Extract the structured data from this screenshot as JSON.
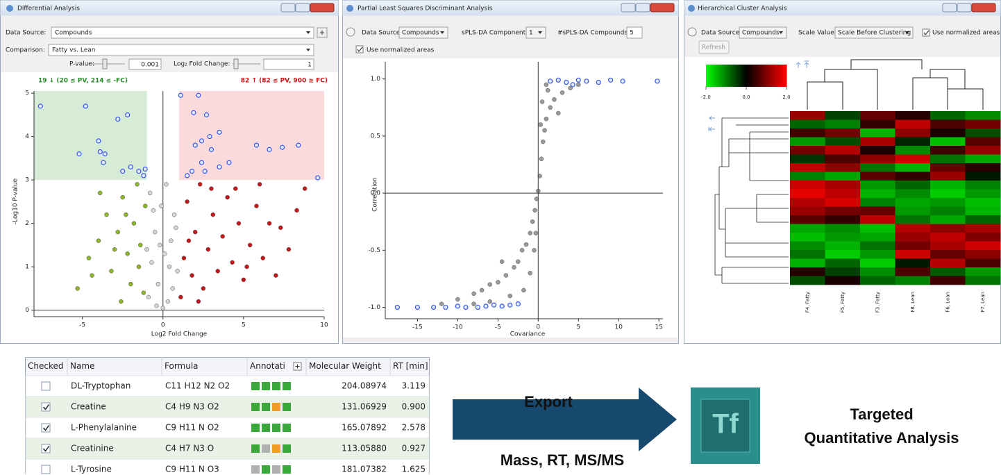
{
  "windows": [
    {
      "title": "Differential Analysis",
      "controls": {
        "data_source_label": "Data Source:",
        "data_source": "Compounds",
        "comparison_label": "Comparison:",
        "comparison": "Fatty vs. Lean",
        "pvalue_label": "P-value:",
        "pvalue": "0.001",
        "fold_label": "Log₂ Fold Change:",
        "fold": "1"
      },
      "chart": {
        "type": "scatter",
        "down_label": "19 ↓ (20 ≤ PV, 214 ≤ -FC)",
        "up_label": "82 ↑ (82 ≤ PV, 900 ≥ FC)",
        "xlabel": "Log2 Fold Change",
        "ylabel": "-Log10 P-value",
        "xlim": [
          -8,
          10
        ],
        "ylim": [
          -0.15,
          5.05
        ],
        "xticks": [
          -5,
          0,
          5,
          10
        ],
        "yticks": [
          0,
          1,
          2,
          3,
          4,
          5
        ],
        "thresholds": {
          "y": 3,
          "x": 1,
          "down_color": "#d6ecd6",
          "up_color": "#fadada"
        },
        "series": [
          {
            "color": "#d4d4d4",
            "x": [
              -0.9,
              -0.7,
              -0.5,
              -0.3,
              -0.1,
              0.1,
              0.3,
              0.5,
              0.7,
              0.9,
              -0.8,
              -0.4,
              0.2,
              0.6,
              -0.2,
              0.8,
              -0.6,
              0.4,
              0,
              -1
            ],
            "values": [
              0.3,
              1.1,
              1.8,
              0.6,
              2.4,
              1.3,
              0.2,
              1.6,
              2.2,
              0.9,
              2.7,
              0.1,
              2.9,
              0.5,
              1.5,
              1.9,
              2.3,
              1.0,
              0.05,
              1.4
            ]
          },
          {
            "color": "#8db52a",
            "x": [
              -5.3,
              -4.6,
              -4.0,
              -3.5,
              -3.2,
              -2.8,
              -2.5,
              -2.2,
              -2.0,
              -1.8,
              -1.6,
              -1.4,
              -1.2,
              -1.1,
              -3.9,
              -4.4,
              -2.6,
              -1.5,
              -3.0,
              -2.3
            ],
            "values": [
              0.5,
              1.2,
              1.6,
              2.2,
              0.9,
              1.8,
              2.6,
              1.3,
              0.6,
              2.0,
              2.9,
              1.5,
              0.4,
              2.4,
              2.7,
              0.8,
              0.2,
              1.0,
              1.4,
              2.2
            ]
          },
          {
            "color": "#c0181b",
            "x": [
              1.1,
              1.3,
              1.5,
              1.8,
              2.0,
              2.3,
              2.5,
              2.8,
              3.1,
              3.4,
              3.7,
              4.0,
              4.3,
              4.7,
              5.0,
              5.4,
              5.8,
              6.2,
              6.6,
              7.0,
              7.3,
              7.8,
              8.3,
              8.8,
              3.0,
              1.6,
              2.2,
              4.5,
              6.0,
              5.2
            ],
            "values": [
              0.3,
              1.2,
              2.5,
              0.8,
              1.8,
              2.9,
              0.5,
              1.4,
              2.2,
              0.9,
              1.7,
              2.6,
              1.1,
              2.0,
              0.7,
              1.5,
              2.4,
              1.2,
              2.0,
              0.8,
              1.9,
              1.4,
              2.3,
              2.8,
              2.8,
              1.6,
              0.2,
              2.8,
              2.9,
              1.0
            ]
          },
          {
            "color": "#3355ee",
            "x": [
              -7.6,
              -4.8,
              -2.2,
              -2.8,
              -5.2,
              -4.0,
              -3.9,
              -3.6,
              -3.7,
              -2.5,
              -2.0,
              -1.5,
              -1.2,
              -1.1,
              1.1,
              2.2,
              1.9,
              2.7,
              3.5,
              2.0,
              2.4,
              3.0,
              2.9,
              1.8,
              2.4,
              3.5,
              4.1,
              5.8,
              6.6,
              7.4,
              8.4,
              9.6,
              1.5,
              2.6
            ],
            "values": [
              4.7,
              4.7,
              4.5,
              4.4,
              3.6,
              3.9,
              3.65,
              3.6,
              3.4,
              3.2,
              3.3,
              3.2,
              3.1,
              3.25,
              4.95,
              4.95,
              4.55,
              4.5,
              4.1,
              3.8,
              3.9,
              3.7,
              4.0,
              3.2,
              3.4,
              3.3,
              3.4,
              3.8,
              3.7,
              3.75,
              3.8,
              3.05,
              3.1,
              3.2
            ]
          }
        ]
      }
    },
    {
      "title": "Partial Least Squares Discriminant Analysis",
      "controls": {
        "data_source_label": "Data Source:",
        "data_source": "Compounds",
        "component_label": "sPLS-DA Component:",
        "component": "1",
        "compounds_label": "#sPLS-DA Compounds:",
        "compounds": "5",
        "normalized": "Use normalized areas"
      },
      "chart": {
        "type": "scatter",
        "xlabel": "Covariance",
        "ylabel": "Correlation",
        "xlim": [
          -19,
          15.5
        ],
        "ylim": [
          -1.1,
          1.15
        ],
        "xticks": [
          -15,
          -10,
          -5,
          0,
          5,
          10,
          15
        ],
        "yticks": [
          {
            "value": -1,
            "label": "-1.0"
          },
          -0.5,
          {
            "value": 0,
            "label": "0.0"
          },
          0.5,
          {
            "value": 1,
            "label": "1.0"
          }
        ],
        "series": [
          {
            "color": "#555555",
            "x": [
              -12,
              -10,
              -8,
              -7,
              -6,
              -5,
              -4,
              -3,
              -2.5,
              -2,
              -1.5,
              -1,
              -0.7,
              -0.4,
              -0.2,
              0,
              0.2,
              0.4,
              0.6,
              0.8,
              1,
              1.5,
              2,
              3,
              4,
              5,
              -3.5,
              -1,
              -0.5,
              0.5,
              1.2,
              2.5,
              -6,
              -8,
              -1.8,
              0.3,
              -0.3,
              1,
              3.5,
              -4.5
            ],
            "values": [
              -0.97,
              -0.93,
              -0.88,
              -0.85,
              -0.8,
              -0.78,
              -0.72,
              -0.65,
              -0.6,
              -0.5,
              -0.45,
              -0.35,
              -0.25,
              -0.15,
              -0.05,
              0.02,
              0.15,
              0.3,
              0.45,
              0.55,
              0.65,
              0.75,
              0.82,
              0.88,
              0.92,
              0.95,
              -0.9,
              -0.7,
              -0.5,
              0.8,
              0.9,
              0.7,
              -0.95,
              -0.97,
              -0.85,
              0.6,
              -0.35,
              0.95,
              0.97,
              -0.6
            ]
          },
          {
            "color": "#3355ee",
            "x": [
              -17.5,
              -15,
              -13,
              -11.5,
              -10,
              -9,
              -7.5,
              -6.5,
              -5.5,
              -4.5,
              -3.5,
              -2.5,
              1.5,
              2.5,
              3.5,
              5,
              6,
              7.5,
              9,
              10.5,
              14.8,
              4.3
            ],
            "values": [
              -1,
              -1,
              -1,
              -1,
              -0.99,
              -1,
              -1,
              -0.99,
              -0.98,
              -0.99,
              -0.98,
              -0.97,
              0.98,
              0.99,
              0.97,
              0.99,
              0.98,
              0.97,
              0.99,
              0.98,
              0.98,
              0.95
            ]
          }
        ]
      }
    },
    {
      "title": "Hierarchical Cluster Analysis",
      "controls": {
        "data_source_label": "Data Source:",
        "data_source": "Compounds",
        "scale_label": "Scale Values:",
        "scale": "Scale Before Clustering",
        "normalized": "Use normalized areas",
        "refresh": "Refresh"
      },
      "chart": {
        "type": "heatmap",
        "colors": [
          "#00ff00",
          "#000000",
          "#ff0000"
        ],
        "scale_lim": [
          -2,
          2
        ],
        "scale_ticks": [
          {
            "value": -2,
            "label": "-2.0"
          },
          {
            "value": 0,
            "label": "0.0"
          },
          {
            "value": 2,
            "label": "2.0"
          }
        ],
        "columns": [
          "F4, Fatty",
          "F5, Fatty",
          "F3, Fatty",
          "F8, Lean",
          "F6, Lean",
          "F7, Lean"
        ],
        "values": [
          [
            1.2,
            -0.5,
            0.8,
            0.3,
            -0.8,
            -1.1
          ],
          [
            -0.8,
            -1.0,
            0.4,
            1.5,
            0.6,
            0.9
          ],
          [
            0.5,
            0.9,
            -1.4,
            1.1,
            0.2,
            -0.6
          ],
          [
            -1.2,
            -0.6,
            1.3,
            -0.3,
            -1.5,
            0.7
          ],
          [
            0.9,
            1.4,
            0.2,
            -1.1,
            0.5,
            1.2
          ],
          [
            -0.4,
            0.6,
            1.1,
            1.6,
            -0.9,
            -1.3
          ],
          [
            1.5,
            1.1,
            -0.9,
            -1.4,
            0.8,
            0.3
          ],
          [
            -1.0,
            -1.3,
            0.7,
            0.4,
            1.2,
            -0.2
          ],
          [
            1.6,
            1.3,
            -1.2,
            -0.8,
            -1.4,
            -1.0
          ],
          [
            1.8,
            1.5,
            -1.4,
            -1.1,
            -1.6,
            -1.2
          ],
          [
            1.4,
            1.7,
            -1.0,
            -1.3,
            -1.2,
            -1.5
          ],
          [
            1.2,
            0.9,
            0.8,
            -1.2,
            -1.0,
            -1.4
          ],
          [
            0.7,
            0.4,
            1.5,
            -0.9,
            -1.3,
            -0.8
          ],
          [
            -1.3,
            -1.1,
            -1.5,
            1.4,
            1.1,
            1.3
          ],
          [
            -1.5,
            -1.2,
            -1.3,
            1.2,
            1.5,
            1.0
          ],
          [
            -1.1,
            -1.4,
            -0.9,
            0.9,
            1.3,
            1.6
          ],
          [
            -0.9,
            -1.6,
            -1.2,
            1.6,
            0.8,
            1.1
          ],
          [
            -1.4,
            -0.8,
            -1.6,
            -0.2,
            1.4,
            0.6
          ],
          [
            0.3,
            -0.5,
            -1.1,
            0.6,
            -0.7,
            -1.2
          ],
          [
            -0.6,
            0.2,
            -0.8,
            -1.0,
            0.5,
            -0.9
          ]
        ]
      }
    }
  ],
  "table": {
    "columns": [
      "Checked",
      "Name",
      "Formula",
      "Annotati",
      "Molecular Weight",
      "RT [min]"
    ],
    "rows": [
      {
        "checked": false,
        "name": "DL-Tryptophan",
        "formula": "C11 H12 N2 O2",
        "annotations": [
          "#3aa83a",
          "#3aa83a",
          "#3aa83a",
          "#3aa83a"
        ],
        "weight": "204.08974",
        "rt": "3.119"
      },
      {
        "checked": true,
        "name": "Creatine",
        "formula": "C4 H9 N3 O2",
        "annotations": [
          "#3aa83a",
          "#3aa83a",
          "#f0a020",
          "#3aa83a"
        ],
        "weight": "131.06929",
        "rt": "0.900"
      },
      {
        "checked": true,
        "name": "L-Phenylalanine",
        "formula": "C9 H11 N O2",
        "annotations": [
          "#3aa83a",
          "#3aa83a",
          "#3aa83a",
          "#3aa83a"
        ],
        "weight": "165.07892",
        "rt": "2.578"
      },
      {
        "checked": true,
        "name": "Creatinine",
        "formula": "C4 H7 N3 O",
        "annotations": [
          "#3aa83a",
          "#b0b0b0",
          "#f0a020",
          "#3aa83a"
        ],
        "weight": "113.05880",
        "rt": "0.927"
      },
      {
        "checked": false,
        "name": "L-Tyrosine",
        "formula": "C9 H11 N O3",
        "annotations": [
          "#b0b0b0",
          "#3aa83a",
          "#b0b0b0",
          "#3aa83a"
        ],
        "weight": "181.07382",
        "rt": "1.625"
      }
    ]
  },
  "export": {
    "label": "Export",
    "sublabel": "Mass, RT, MS/MS"
  },
  "target": {
    "icon": "Tf",
    "line1": "Targeted",
    "line2": "Quantitative Analysis"
  }
}
